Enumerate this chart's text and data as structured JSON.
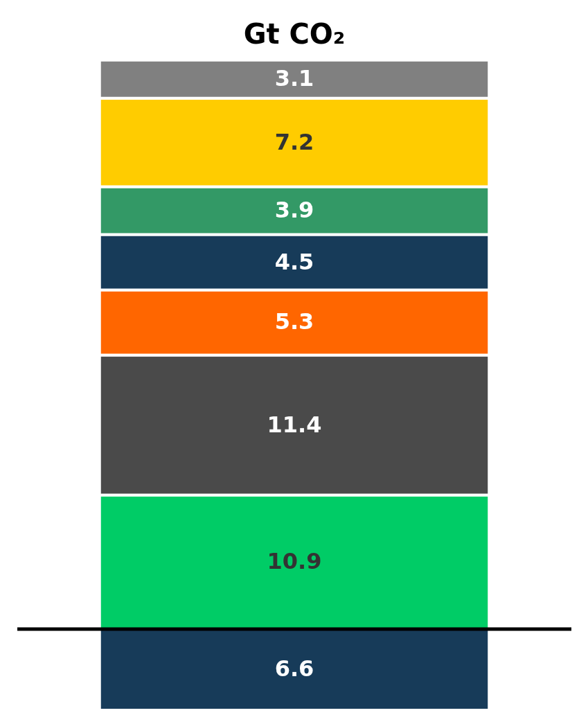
{
  "chart_data": {
    "type": "bar",
    "title": "Gt CO₂",
    "categories": [
      null
    ],
    "stacked": true,
    "data_labels": true,
    "tick_labels": false,
    "ylim": [
      0,
      53
    ],
    "series": [
      {
        "color": "#173b59",
        "values": [
          6.6
        ]
      },
      {
        "color": "#00cc66",
        "values": [
          10.9
        ]
      },
      {
        "color": "#4a4a4a",
        "values": [
          11.4
        ]
      },
      {
        "color": "#ff6600",
        "values": [
          5.3
        ]
      },
      {
        "color": "#173b59",
        "values": [
          4.5
        ]
      },
      {
        "color": "#339966",
        "values": [
          3.9
        ]
      },
      {
        "color": "#ffcc00",
        "values": [
          7.2
        ]
      },
      {
        "color": "#808080",
        "values": [
          3.1
        ]
      }
    ],
    "ref_lines": [
      {
        "axis": "y",
        "value": 6.6,
        "label": null,
        "color": "#000000"
      }
    ]
  }
}
